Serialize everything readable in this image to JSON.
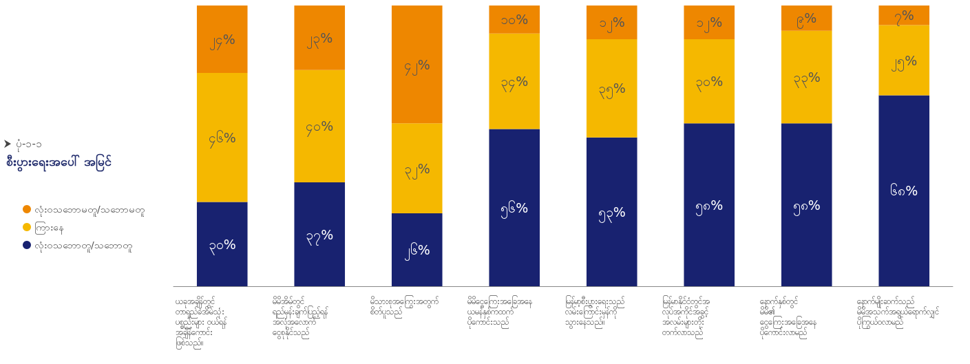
{
  "chart_data": {
    "type": "bar",
    "stacked": true,
    "subtitle": "ပုံ-၁-၁",
    "title": "စီးပွားရေးအပေါ် အမြင်",
    "categories": [
      "ယခုအချိန်တွင်\nတာရှည်ခံအိမ်သုံး\nပစ္စည်းများ ဝယ်ရန်\nအချိန်ကောင်း\nဖြစ်သည်။",
      "မိမိအိမ်တွင်\nရည်မှန်းချက်ပြည့်ရန်\nအလုံအလောက်\nငွေစုနိုင်သည်",
      "မိသားစုအကြွေးအတွက်\nစိတ်ပူသည်",
      "မိမိငွေကြေးအခြေအနေ\nယမန်နှစ်ကထက်\nပိုကောင်းသည်",
      "မြန်မာ့စီးပွားရေးသည်\nလမ်းကြောင်းမှန်ကို\nသွားနေသည်။",
      "မြန်မာနိုင်ငံတွင်အ\nလုပ်အကိုင်အခွင့်\nအလမ်းများတိုး\nတက်လာသည်",
      "နောက်နှစ်တွင်\nမိမိ၏\nငွေကြေးအခြေအနေ\nပိုကောင်းလာမည်",
      "နောက်မျိုးဆက်သည်\nမိမိအသက်အရွယ်ရောက်လျှင်\nပိုကြွယ်ဝလာမည်"
    ],
    "series": [
      {
        "name": "လုံးဝသဘောတူ/သဘောတူ",
        "color": "#182270",
        "values": [
          30,
          37,
          26,
          56,
          53,
          58,
          58,
          68
        ],
        "value_labels": [
          "၃၀%",
          "၃၇%",
          "၂၆%",
          "၅၆%",
          "၅၃%",
          "၅၈%",
          "၅၈%",
          "၆၈%"
        ]
      },
      {
        "name": "ကြားနေ",
        "color": "#f5b800",
        "values": [
          46,
          40,
          32,
          34,
          35,
          30,
          33,
          25
        ],
        "value_labels": [
          "၄၆%",
          "၄၀%",
          "၃၂%",
          "၃၄%",
          "၃၅%",
          "၃၀%",
          "၃၃%",
          "၂၅%"
        ]
      },
      {
        "name": "လုံးဝသဘောမတူ/သဘောမတူ",
        "color": "#ee8700",
        "values": [
          24,
          23,
          42,
          10,
          12,
          12,
          9,
          7
        ],
        "value_labels": [
          "၂၄%",
          "၂၃%",
          "၄၂%",
          "၁၀%",
          "၁၂%",
          "၁၂%",
          "၉%",
          "၇%"
        ]
      }
    ],
    "legend": "left"
  }
}
